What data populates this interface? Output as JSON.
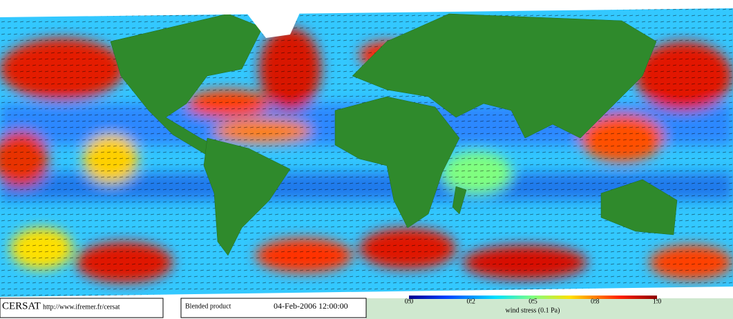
{
  "header": {
    "logo": "CERSAT",
    "url": "http://www.ifremer.fr/cersat"
  },
  "product": "Blended product",
  "timestamp": "04-Feb-2006 12:00:00",
  "colorbar": {
    "ticks": [
      {
        "value": 0,
        "label": "0.0"
      },
      0.2,
      0.5,
      0.8,
      {
        "value": 1,
        "label": "1.0"
      }
    ],
    "label": "wind stress (0.1 Pa)"
  }
}
